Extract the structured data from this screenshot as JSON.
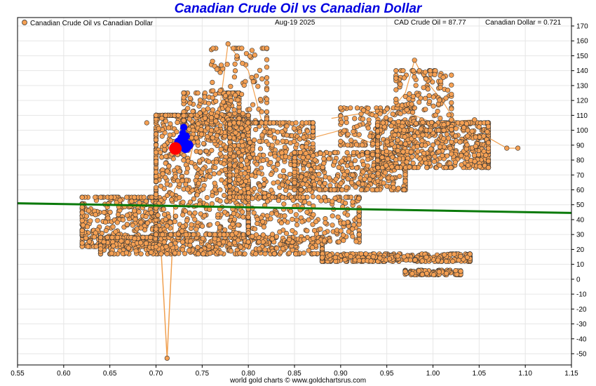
{
  "chart_data": {
    "type": "scatter",
    "title": "Canadian Crude Oil vs Canadian Dollar",
    "date": "Aug-19  2025",
    "legend": {
      "label": "Canadian Crude Oil vs Canadian Dollar",
      "placement": "top-left",
      "color": "#f5a053"
    },
    "readouts": {
      "crude": "CAD Crude Oil = 87.77",
      "cad": "Canadian Dollar = 0.721"
    },
    "xlim": [
      0.55,
      1.15
    ],
    "ylim": [
      -60,
      175
    ],
    "x_ticks": [
      "0.55",
      "0.60",
      "0.65",
      "0.70",
      "0.75",
      "0.80",
      "0.85",
      "0.90",
      "0.95",
      "1.00",
      "1.05",
      "1.10",
      "1.15"
    ],
    "y_ticks": [
      "170",
      "160",
      "150",
      "140",
      "130",
      "120",
      "110",
      "100",
      "90",
      "80",
      "70",
      "60",
      "50",
      "40",
      "30",
      "20",
      "10",
      "0",
      "-10",
      "-20",
      "-30",
      "-40",
      "-50"
    ],
    "grid": true,
    "colors": {
      "points": "#f5a053",
      "path": "#f0a050",
      "trend": "#0a7a0a",
      "recent": "#0000ff",
      "current": "#ff0000"
    },
    "trend_line": {
      "x": [
        0.55,
        1.15
      ],
      "y": [
        51,
        44.5
      ]
    },
    "current": {
      "x": 0.721,
      "y": 87.77
    },
    "recent": [
      {
        "x": 0.727,
        "y": 95
      },
      {
        "x": 0.729,
        "y": 98
      },
      {
        "x": 0.73,
        "y": 102
      },
      {
        "x": 0.731,
        "y": 93
      },
      {
        "x": 0.733,
        "y": 96
      },
      {
        "x": 0.735,
        "y": 90
      },
      {
        "x": 0.732,
        "y": 88
      },
      {
        "x": 0.725,
        "y": 92
      }
    ],
    "clusters": [
      {
        "x": [
          0.62,
          0.7
        ],
        "y": [
          22,
          55
        ],
        "n": 380
      },
      {
        "x": [
          0.64,
          0.88
        ],
        "y": [
          17,
          28
        ],
        "n": 520
      },
      {
        "x": [
          0.7,
          0.8
        ],
        "y": [
          30,
          110
        ],
        "n": 900
      },
      {
        "x": [
          0.73,
          0.79
        ],
        "y": [
          95,
          125
        ],
        "n": 200
      },
      {
        "x": [
          0.76,
          0.82
        ],
        "y": [
          100,
          155
        ],
        "n": 120
      },
      {
        "x": [
          0.78,
          0.87
        ],
        "y": [
          55,
          105
        ],
        "n": 500
      },
      {
        "x": [
          0.8,
          0.92
        ],
        "y": [
          25,
          55
        ],
        "n": 260
      },
      {
        "x": [
          0.85,
          0.97
        ],
        "y": [
          60,
          85
        ],
        "n": 420
      },
      {
        "x": [
          0.9,
          0.98
        ],
        "y": [
          90,
          115
        ],
        "n": 150
      },
      {
        "x": [
          0.94,
          1.06
        ],
        "y": [
          75,
          105
        ],
        "n": 620
      },
      {
        "x": [
          0.96,
          1.02
        ],
        "y": [
          100,
          140
        ],
        "n": 160
      },
      {
        "x": [
          0.88,
          1.04
        ],
        "y": [
          12,
          17
        ],
        "n": 320
      },
      {
        "x": [
          0.97,
          1.03
        ],
        "y": [
          3,
          6
        ],
        "n": 110
      }
    ],
    "outliers": [
      {
        "x": 0.712,
        "y": -53
      },
      {
        "x": 1.092,
        "y": 88
      },
      {
        "x": 1.08,
        "y": 88
      },
      {
        "x": 0.778,
        "y": 158
      },
      {
        "x": 0.98,
        "y": 147
      },
      {
        "x": 1.045,
        "y": 107
      },
      {
        "x": 0.69,
        "y": 105
      },
      {
        "x": 0.935,
        "y": 91
      }
    ]
  },
  "footer": {
    "credit": "world gold charts © www.goldchartsrus.com"
  }
}
